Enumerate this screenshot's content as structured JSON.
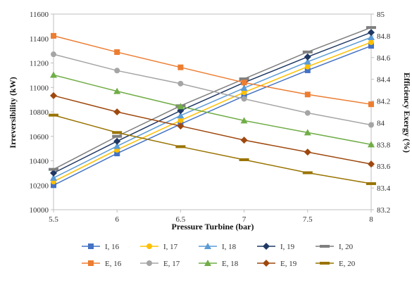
{
  "chart_data": {
    "type": "line",
    "title": "",
    "xlabel": "Pressure Turbine (bar)",
    "ylabel_left": "Irreversibility (kW)",
    "ylabel_right": "Efficiency Exergy (%)",
    "x": [
      5.5,
      6,
      6.5,
      7,
      7.5,
      8
    ],
    "x_ticks": [
      "5.5",
      "6",
      "6.5",
      "7",
      "7.5",
      "8"
    ],
    "xlim": [
      5.5,
      8
    ],
    "ylim_left": [
      10000,
      11600
    ],
    "yticks_left": [
      "10000",
      "10200",
      "10400",
      "10600",
      "10800",
      "11000",
      "11200",
      "11400",
      "11600"
    ],
    "ylim_right": [
      83.2,
      85
    ],
    "yticks_right": [
      "83.2",
      "83.4",
      "83.6",
      "83.8",
      "84",
      "84.2",
      "84.4",
      "84.6",
      "84.8",
      "85"
    ],
    "grid": false,
    "legend_position": "bottom",
    "series": [
      {
        "name": "I, 16",
        "axis": "left",
        "color": "#4472c4",
        "marker": "square",
        "values": [
          10200,
          10460,
          10700,
          10930,
          11140,
          11340
        ]
      },
      {
        "name": "I, 17",
        "axis": "left",
        "color": "#ffc000",
        "marker": "circle",
        "values": [
          10230,
          10490,
          10730,
          10960,
          11170,
          11370
        ]
      },
      {
        "name": "I, 18",
        "axis": "left",
        "color": "#5b9bd5",
        "marker": "triangle",
        "values": [
          10260,
          10520,
          10770,
          10995,
          11210,
          11410
        ]
      },
      {
        "name": "I, 19",
        "axis": "left",
        "color": "#1f3864",
        "marker": "diamond",
        "values": [
          10300,
          10560,
          10810,
          11040,
          11250,
          11450
        ]
      },
      {
        "name": "I, 20",
        "axis": "left",
        "color": "#7f7f7f",
        "marker": "dash",
        "values": [
          10330,
          10600,
          10850,
          11070,
          11290,
          11490
        ]
      },
      {
        "name": "E, 16",
        "axis": "right",
        "color": "#ed7d31",
        "marker": "square",
        "values": [
          84.8,
          84.65,
          84.51,
          84.37,
          84.26,
          84.17
        ]
      },
      {
        "name": "E, 17",
        "axis": "right",
        "color": "#a5a5a5",
        "marker": "circle",
        "values": [
          84.63,
          84.48,
          84.36,
          84.22,
          84.09,
          83.98
        ]
      },
      {
        "name": "E, 18",
        "axis": "right",
        "color": "#70ad47",
        "marker": "triangle",
        "values": [
          84.44,
          84.29,
          84.15,
          84.02,
          83.91,
          83.8
        ]
      },
      {
        "name": "E, 19",
        "axis": "right",
        "color": "#9e480e",
        "marker": "diamond",
        "values": [
          84.25,
          84.1,
          83.97,
          83.84,
          83.73,
          83.62
        ]
      },
      {
        "name": "E, 20",
        "axis": "right",
        "color": "#997300",
        "marker": "dash",
        "values": [
          84.07,
          83.91,
          83.78,
          83.66,
          83.54,
          83.44
        ]
      }
    ]
  }
}
